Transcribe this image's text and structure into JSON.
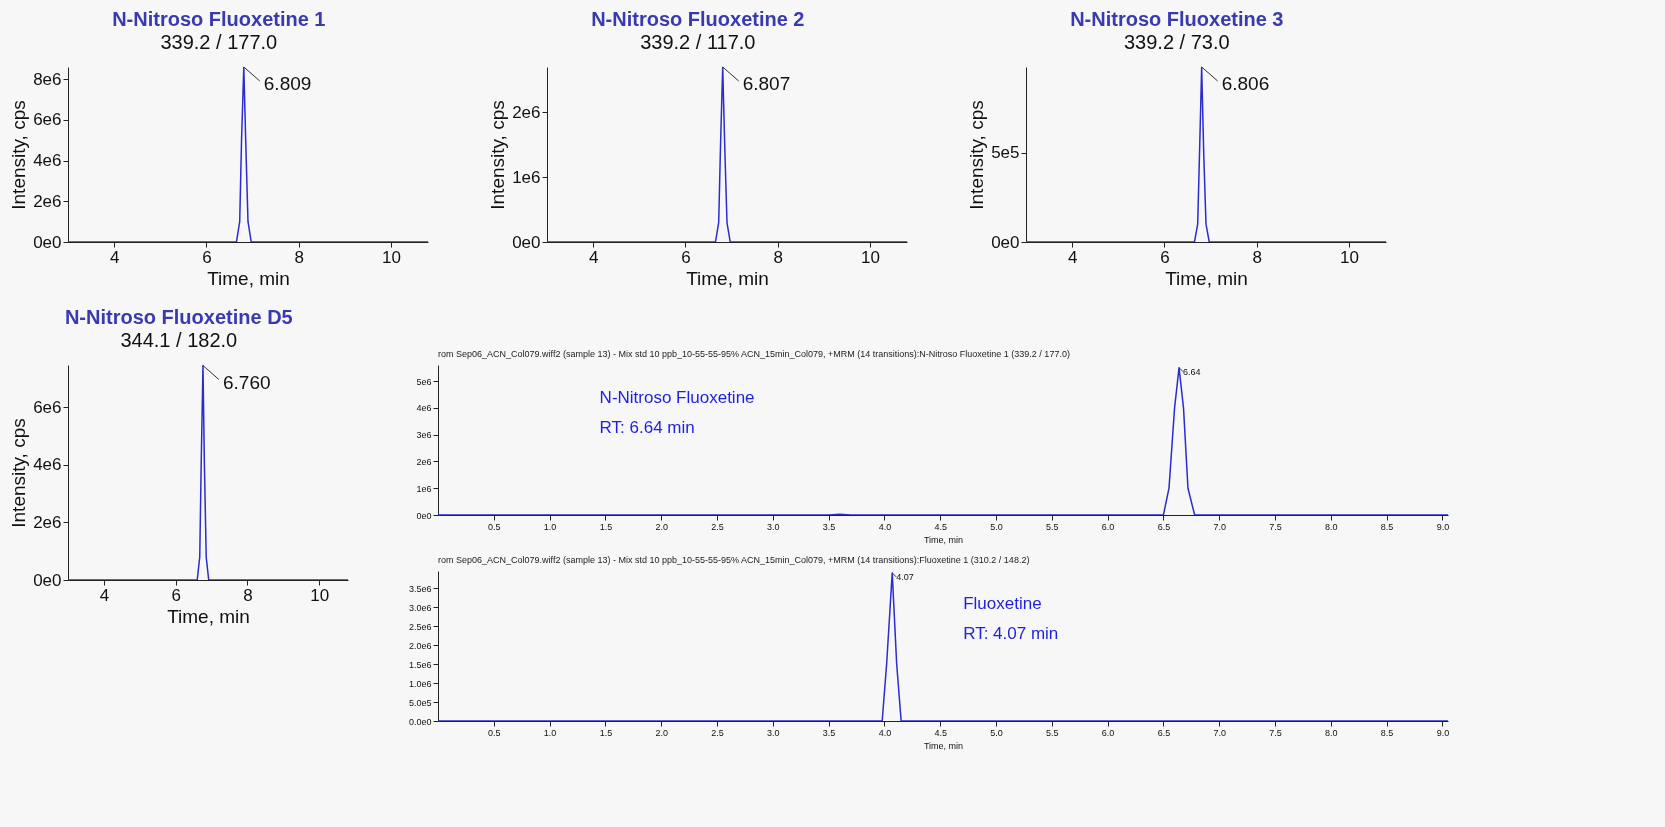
{
  "chart_data": [
    {
      "type": "line",
      "title": "N-Nitroso Fluoxetine 1",
      "subtitle": "339.2 / 177.0",
      "xlabel": "Time, min",
      "ylabel": "Intensity, cps",
      "xlim": [
        3,
        10.8
      ],
      "xticks": [
        4,
        6,
        8,
        10
      ],
      "ylim": [
        0,
        8600000
      ],
      "yticks": [
        {
          "value": 0,
          "label": "0e0"
        },
        {
          "value": 2000000,
          "label": "2e6"
        },
        {
          "value": 4000000,
          "label": "4e6"
        },
        {
          "value": 6000000,
          "label": "6e6"
        },
        {
          "value": 8000000,
          "label": "8e6"
        }
      ],
      "series": [
        {
          "color": "#2b2bd0",
          "x": [
            3,
            6.65,
            6.72,
            6.76,
            6.809,
            6.85,
            6.9,
            6.97,
            10.8
          ],
          "values": [
            0,
            0,
            1000000,
            5000000,
            8600000,
            5000000,
            1000000,
            0,
            0
          ]
        }
      ],
      "annotations": [
        {
          "text": "6.809",
          "x": 6.809,
          "y": 8600000
        }
      ]
    },
    {
      "type": "line",
      "title": "N-Nitroso Fluoxetine 2",
      "subtitle": "339.2 / 117.0",
      "xlabel": "Time, min",
      "ylabel": "Intensity, cps",
      "xlim": [
        3,
        10.8
      ],
      "xticks": [
        4,
        6,
        8,
        10
      ],
      "ylim": [
        0,
        2700000
      ],
      "yticks": [
        {
          "value": 0,
          "label": "0e0"
        },
        {
          "value": 1000000,
          "label": "1e6"
        },
        {
          "value": 2000000,
          "label": "2e6"
        }
      ],
      "series": [
        {
          "color": "#2b2bd0",
          "x": [
            3,
            6.65,
            6.72,
            6.76,
            6.807,
            6.85,
            6.9,
            6.97,
            10.8
          ],
          "values": [
            0,
            0,
            300000,
            1500000,
            2700000,
            1500000,
            300000,
            0,
            0
          ]
        }
      ],
      "annotations": [
        {
          "text": "6.807",
          "x": 6.807,
          "y": 2700000
        }
      ]
    },
    {
      "type": "line",
      "title": "N-Nitroso Fluoxetine 3",
      "subtitle": "339.2 / 73.0",
      "xlabel": "Time, min",
      "ylabel": "Intensity, cps",
      "xlim": [
        3,
        10.8
      ],
      "xticks": [
        4,
        6,
        8,
        10
      ],
      "ylim": [
        0,
        980000
      ],
      "yticks": [
        {
          "value": 0,
          "label": "0e0"
        },
        {
          "value": 500000,
          "label": "5e5"
        }
      ],
      "series": [
        {
          "color": "#2b2bd0",
          "x": [
            3,
            6.65,
            6.72,
            6.76,
            6.806,
            6.85,
            6.9,
            6.97,
            10.8
          ],
          "values": [
            0,
            0,
            100000,
            500000,
            980000,
            500000,
            100000,
            0,
            0
          ]
        }
      ],
      "annotations": [
        {
          "text": "6.806",
          "x": 6.806,
          "y": 980000
        }
      ]
    },
    {
      "type": "line",
      "title": "N-Nitroso Fluoxetine D5",
      "subtitle": "344.1 / 182.0",
      "xlabel": "Time, min",
      "ylabel": "Intensity, cps",
      "xlim": [
        3,
        10.8
      ],
      "xticks": [
        4,
        6,
        8,
        10
      ],
      "ylim": [
        0,
        7470000
      ],
      "yticks": [
        {
          "value": 0,
          "label": "0e0"
        },
        {
          "value": 2000000,
          "label": "2e6"
        },
        {
          "value": 4000000,
          "label": "4e6"
        },
        {
          "value": 6000000,
          "label": "6e6"
        }
      ],
      "series": [
        {
          "color": "#2b2bd0",
          "x": [
            3,
            6.6,
            6.67,
            6.71,
            6.76,
            6.8,
            6.85,
            6.92,
            10.8
          ],
          "values": [
            0,
            0,
            800000,
            4000000,
            7450000,
            4000000,
            800000,
            0,
            0
          ]
        }
      ],
      "annotations": [
        {
          "text": "6.760",
          "x": 6.76,
          "y": 7450000
        }
      ]
    },
    {
      "type": "line",
      "title": "rom Sep06_ACN_Col079.wiff2 (sample 13) - Mix std 10 ppb_10-55-55-95% ACN_15min_Col079, +MRM (14 transitions):N-Nitroso Fluoxetine 1 (339.2 / 177.0)",
      "xlabel": "Time, min",
      "xlim": [
        0,
        9.05
      ],
      "xticks": [
        0.5,
        {
          "value": 1,
          "label": "1.0"
        },
        1.5,
        {
          "value": 2,
          "label": "2.0"
        },
        2.5,
        {
          "value": 3,
          "label": "3.0"
        },
        3.5,
        {
          "value": 4,
          "label": "4.0"
        },
        4.5,
        {
          "value": 5,
          "label": "5.0"
        },
        5.5,
        {
          "value": 6,
          "label": "6.0"
        },
        6.5,
        {
          "value": 7,
          "label": "7.0"
        },
        7.5,
        {
          "value": 8,
          "label": "8.0"
        },
        8.5,
        {
          "value": 9,
          "label": "9.0"
        }
      ],
      "ylim": [
        0,
        5600000
      ],
      "yticks": [
        {
          "value": 0,
          "label": "0e0"
        },
        {
          "value": 1000000,
          "label": "1e6"
        },
        {
          "value": 2000000,
          "label": "2e6"
        },
        {
          "value": 3000000,
          "label": "3e6"
        },
        {
          "value": 4000000,
          "label": "4e6"
        },
        {
          "value": 5000000,
          "label": "5e6"
        }
      ],
      "series": [
        {
          "color": "#2b2bd0",
          "x": [
            0,
            3.5,
            3.6,
            3.7,
            6.5,
            6.55,
            6.6,
            6.64,
            6.68,
            6.72,
            6.78,
            9.05
          ],
          "values": [
            0,
            0,
            30000,
            0,
            0,
            1000000,
            4000000,
            5500000,
            4000000,
            1000000,
            0,
            0
          ]
        }
      ],
      "annotations": [
        {
          "text": "6.64",
          "x": 6.64,
          "y": 5500000
        },
        "N-Nitroso Fluoxetine",
        "RT: 6.64 min"
      ]
    },
    {
      "type": "line",
      "title": "rom Sep06_ACN_Col079.wiff2 (sample 13) - Mix std 10 ppb_10-55-55-95% ACN_15min_Col079, +MRM (14 transitions):Fluoxetine 1 (310.2 / 148.2)",
      "xlabel": "Time, min",
      "xlim": [
        0,
        9.05
      ],
      "xticks": [
        0.5,
        {
          "value": 1,
          "label": "1.0"
        },
        1.5,
        {
          "value": 2,
          "label": "2.0"
        },
        2.5,
        {
          "value": 3,
          "label": "3.0"
        },
        3.5,
        {
          "value": 4,
          "label": "4.0"
        },
        4.5,
        {
          "value": 5,
          "label": "5.0"
        },
        5.5,
        {
          "value": 6,
          "label": "6.0"
        },
        6.5,
        {
          "value": 7,
          "label": "7.0"
        },
        7.5,
        {
          "value": 8,
          "label": "8.0"
        },
        8.5,
        {
          "value": 9,
          "label": "9.0"
        }
      ],
      "ylim": [
        0,
        3950000
      ],
      "yticks": [
        {
          "value": 0,
          "label": "0.0e0"
        },
        {
          "value": 500000,
          "label": "5.0e5"
        },
        {
          "value": 1000000,
          "label": "1.0e6"
        },
        {
          "value": 1500000,
          "label": "1.5e6"
        },
        {
          "value": 2000000,
          "label": "2.0e6"
        },
        {
          "value": 2500000,
          "label": "2.5e6"
        },
        {
          "value": 3000000,
          "label": "3.0e6"
        },
        {
          "value": 3500000,
          "label": "3.5e6"
        }
      ],
      "series": [
        {
          "color": "#2b2bd0",
          "x": [
            0,
            3.98,
            4.02,
            4.07,
            4.11,
            4.15,
            9.05
          ],
          "values": [
            0,
            0,
            1500000,
            3900000,
            1500000,
            0,
            0
          ]
        }
      ],
      "annotations": [
        {
          "text": "4.07",
          "x": 4.07,
          "y": 3900000
        },
        "Fluoxetine",
        "RT: 4.07 min"
      ]
    }
  ]
}
